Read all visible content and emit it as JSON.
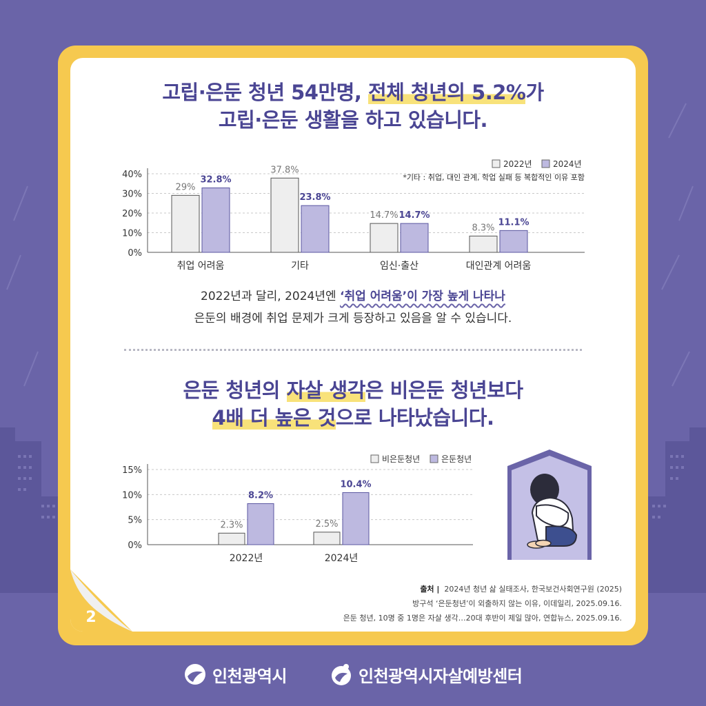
{
  "page_number": "2",
  "section1": {
    "title_line1_a": "고립·은둔 청년 54만명, ",
    "title_line1_hl": "전체 청년의 5.2%",
    "title_line1_b": "가",
    "title_line2": "고립·은둔 생활을 하고 있습니다.",
    "desc_line1_a": "2022년과 달리, 2024년엔 ",
    "desc_line1_emph": "‘취업 어려움’이 가장 높게 나타나",
    "desc_line2": "은둔의 배경에 취업 문제가 크게 등장하고 있음을 알 수 있습니다."
  },
  "section2": {
    "title_line1_a": "은둔 청년의 ",
    "title_line1_hl": "자살 생각",
    "title_line1_b": "은 비은둔 청년보다",
    "title_line2_hl": "4배 더 높은 것",
    "title_line2_b": "으로 나타났습니다."
  },
  "source": {
    "label": "출처 |",
    "line1": "2024년 청년 삶 실태조사, 한국보건사회연구원 (2025)",
    "line2": "방구석 ‘은둔청년’이 외출하지 않는 이유, 이데일리, 2025.09.16.",
    "line3": "은둔 청년, 10명 중 1명은 자살 생각…20대 후반이 제일 많아, 연합뉴스, 2025.09.16."
  },
  "footer": {
    "logo1": "인천광역시",
    "logo2": "인천광역시자살예방센터"
  },
  "colors": {
    "background": "#6a64a8",
    "frame": "#f6c94f",
    "title": "#4a4593",
    "highlight": "#f8e27a",
    "bar_light": "#eeeeee",
    "bar_purple": "#bdb9e0"
  },
  "chart_data": [
    {
      "type": "bar",
      "categories": [
        "취업 어려움",
        "기타",
        "임신·출산",
        "대인관계 어려움"
      ],
      "series": [
        {
          "name": "2022년",
          "values": [
            29,
            37.8,
            14.7,
            8.3
          ],
          "labels": [
            "29%",
            "37.8%",
            "14.7%",
            "8.3%"
          ]
        },
        {
          "name": "2024년",
          "values": [
            32.8,
            23.8,
            14.7,
            11.1
          ],
          "labels": [
            "32.8%",
            "23.8%",
            "14.7%",
            "11.1%"
          ]
        }
      ],
      "yticks": [
        "0%",
        "10%",
        "20%",
        "30%",
        "40%"
      ],
      "ylim": [
        0,
        40
      ],
      "legend_position": "top-right",
      "note": "*기타 : 취업, 대인 관계, 학업 실패 등 복합적인 이유 포함",
      "grid": true
    },
    {
      "type": "bar",
      "categories": [
        "2022년",
        "2024년"
      ],
      "series": [
        {
          "name": "비은둔청년",
          "values": [
            2.3,
            2.5
          ],
          "labels": [
            "2.3%",
            "2.5%"
          ]
        },
        {
          "name": "은둔청년",
          "values": [
            8.2,
            10.4
          ],
          "labels": [
            "8.2%",
            "10.4%"
          ]
        }
      ],
      "yticks": [
        "0%",
        "5%",
        "10%",
        "15%"
      ],
      "ylim": [
        0,
        15
      ],
      "legend_position": "top-right",
      "grid": true
    }
  ]
}
